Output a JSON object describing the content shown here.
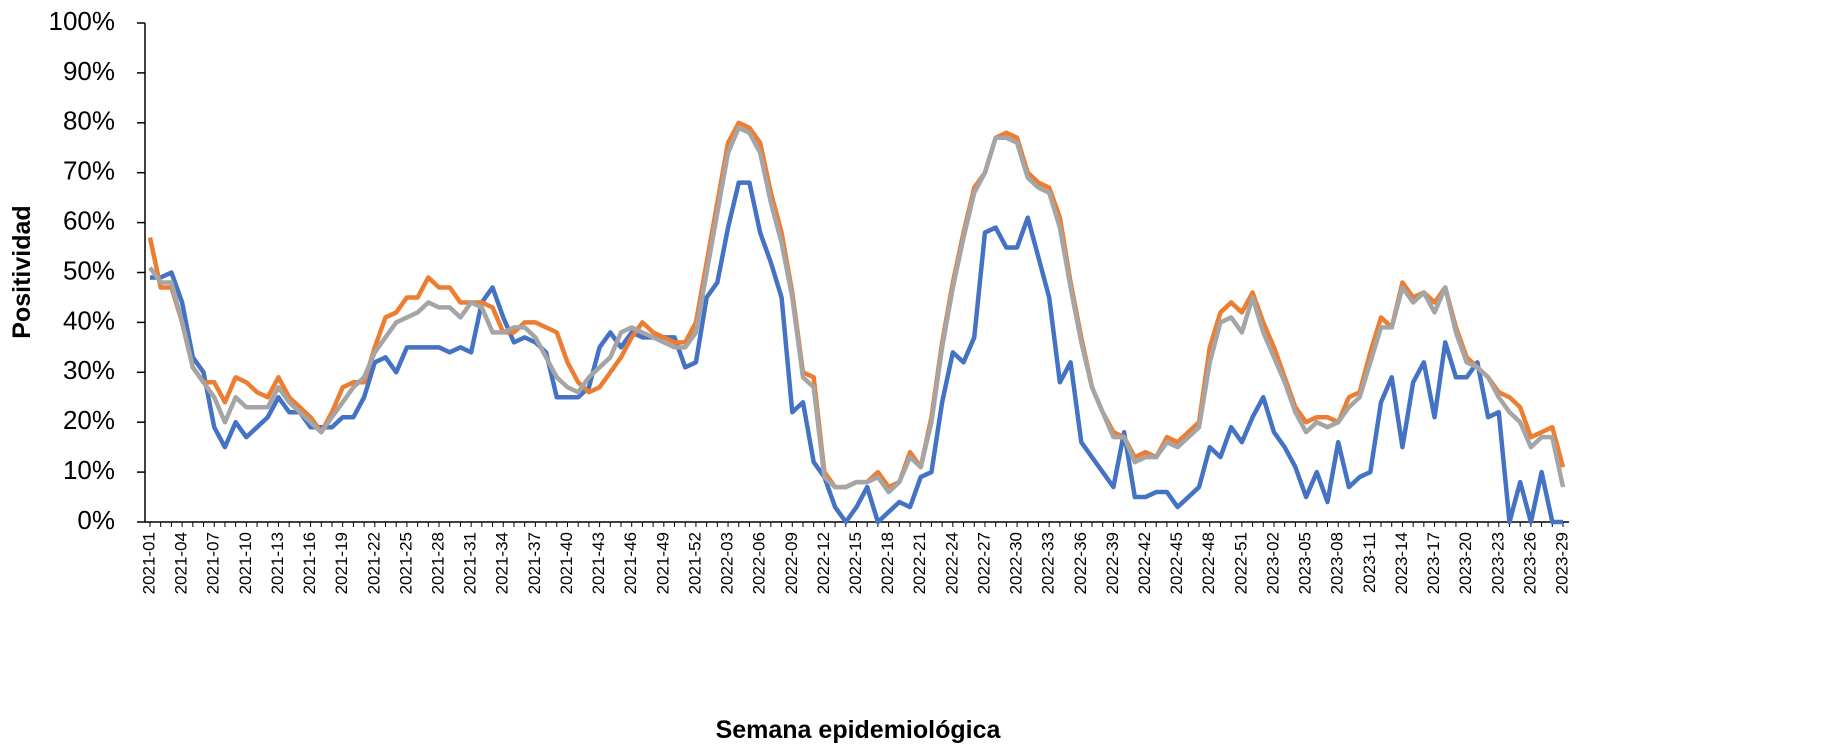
{
  "chart_data": {
    "type": "line",
    "x_label": "Semana epidemiológica",
    "y_label": "Positividad",
    "categories": [
      "2021-01",
      null,
      null,
      "2021-04",
      null,
      null,
      "2021-07",
      null,
      null,
      "2021-10",
      null,
      null,
      "2021-13",
      null,
      null,
      "2021-16",
      null,
      null,
      "2021-19",
      null,
      null,
      "2021-22",
      null,
      null,
      "2021-25",
      null,
      null,
      "2021-28",
      null,
      null,
      "2021-31",
      null,
      null,
      "2021-34",
      null,
      null,
      "2021-37",
      null,
      null,
      "2021-40",
      null,
      null,
      "2021-43",
      null,
      null,
      "2021-46",
      null,
      null,
      "2021-49",
      null,
      null,
      "2021-52",
      null,
      null,
      "2022-03",
      null,
      null,
      "2022-06",
      null,
      null,
      "2022-09",
      null,
      null,
      "2022-12",
      null,
      null,
      "2022-15",
      null,
      null,
      "2022-18",
      null,
      null,
      "2022-21",
      null,
      null,
      "2022-24",
      null,
      null,
      "2022-27",
      null,
      null,
      "2022-30",
      null,
      null,
      "2022-33",
      null,
      null,
      "2022-36",
      null,
      null,
      "2022-39",
      null,
      null,
      "2022-42",
      null,
      null,
      "2022-45",
      null,
      null,
      "2022-48",
      null,
      null,
      "2022-51",
      null,
      null,
      "2023-02",
      null,
      null,
      "2023-05",
      null,
      null,
      "2023-08",
      null,
      null,
      "2023-11",
      null,
      null,
      "2023-14",
      null,
      null,
      "2023-17",
      null,
      null,
      "2023-20",
      null,
      null,
      "2023-23",
      null,
      null,
      "2023-26",
      null,
      null,
      "2023-29"
    ],
    "series": [
      {
        "color": "#4472c4",
        "values": [
          49,
          49,
          50,
          44,
          33,
          30,
          19,
          15,
          20,
          17,
          19,
          21,
          25,
          22,
          22,
          19,
          19,
          19,
          21,
          21,
          25,
          32,
          33,
          30,
          35,
          35,
          35,
          35,
          34,
          35,
          34,
          44,
          47,
          41,
          36,
          37,
          36,
          34,
          25,
          25,
          25,
          27,
          35,
          38,
          35,
          38,
          37,
          37,
          37,
          37,
          31,
          32,
          45,
          48,
          59,
          68,
          68,
          58,
          52,
          45,
          22,
          24,
          12,
          9,
          3,
          0,
          3,
          7,
          0,
          2,
          4,
          3,
          9,
          10,
          24,
          34,
          32,
          37,
          58,
          59,
          55,
          55,
          61,
          53,
          45,
          28,
          32,
          16,
          13,
          10,
          7,
          18,
          5,
          5,
          6,
          6,
          3,
          5,
          7,
          15,
          13,
          19,
          16,
          21,
          25,
          18,
          15,
          11,
          5,
          10,
          4,
          16,
          7,
          9,
          10,
          24,
          29,
          15,
          28,
          32,
          21,
          36,
          29,
          29,
          32,
          21,
          22,
          0,
          8,
          0,
          10,
          0,
          0
        ]
      },
      {
        "color": "#ed7d31",
        "values": [
          57,
          47,
          47,
          40,
          31,
          28,
          28,
          24,
          29,
          28,
          26,
          25,
          29,
          25,
          23,
          21,
          18,
          22,
          27,
          28,
          28,
          35,
          41,
          42,
          45,
          45,
          49,
          47,
          47,
          44,
          44,
          44,
          43,
          38,
          38,
          40,
          40,
          39,
          38,
          32,
          28,
          26,
          27,
          30,
          33,
          37,
          40,
          38,
          37,
          36,
          36,
          40,
          52,
          64,
          76,
          80,
          79,
          76,
          66,
          58,
          46,
          30,
          29,
          10,
          7,
          7,
          8,
          8,
          10,
          7,
          8,
          14,
          11,
          21,
          36,
          48,
          58,
          67,
          70,
          77,
          78,
          77,
          70,
          68,
          67,
          61,
          48,
          37,
          27,
          22,
          18,
          17,
          13,
          14,
          13,
          17,
          16,
          18,
          20,
          35,
          42,
          44,
          42,
          46,
          40,
          35,
          29,
          23,
          20,
          21,
          21,
          20,
          25,
          26,
          34,
          41,
          39,
          48,
          45,
          46,
          44,
          47,
          39,
          33,
          31,
          29,
          26,
          25,
          23,
          17,
          18,
          19,
          11
        ]
      },
      {
        "color": "#a5a5a5",
        "values": [
          51,
          48,
          48,
          40,
          31,
          28,
          25,
          20,
          25,
          23,
          23,
          23,
          27,
          24,
          22,
          20,
          18,
          21,
          24,
          27,
          29,
          34,
          37,
          40,
          41,
          42,
          44,
          43,
          43,
          41,
          44,
          43,
          38,
          38,
          39,
          39,
          37,
          33,
          29,
          27,
          26,
          29,
          31,
          33,
          38,
          39,
          38,
          37,
          36,
          35,
          35,
          38,
          50,
          62,
          74,
          79,
          78,
          74,
          64,
          56,
          45,
          29,
          27,
          9,
          7,
          7,
          8,
          8,
          9,
          6,
          8,
          13,
          11,
          20,
          35,
          47,
          57,
          66,
          70,
          77,
          77,
          76,
          69,
          67,
          66,
          59,
          47,
          36,
          27,
          22,
          17,
          17,
          12,
          13,
          13,
          16,
          15,
          17,
          19,
          32,
          40,
          41,
          38,
          45,
          38,
          33,
          28,
          22,
          18,
          20,
          19,
          20,
          23,
          25,
          32,
          39,
          39,
          47,
          44,
          46,
          42,
          47,
          38,
          32,
          31,
          29,
          25,
          22,
          20,
          15,
          17,
          17,
          7
        ]
      }
    ],
    "ylim": [
      0,
      100
    ],
    "yticks": [
      {
        "value": 0,
        "label": "0%"
      },
      {
        "value": 10,
        "label": "10%"
      },
      {
        "value": 20,
        "label": "20%"
      },
      {
        "value": 30,
        "label": "30%"
      },
      {
        "value": 40,
        "label": "40%"
      },
      {
        "value": 50,
        "label": "50%"
      },
      {
        "value": 60,
        "label": "60%"
      },
      {
        "value": 70,
        "label": "70%"
      },
      {
        "value": 80,
        "label": "80%"
      },
      {
        "value": 90,
        "label": "90%"
      },
      {
        "value": 100,
        "label": "100%"
      }
    ]
  }
}
